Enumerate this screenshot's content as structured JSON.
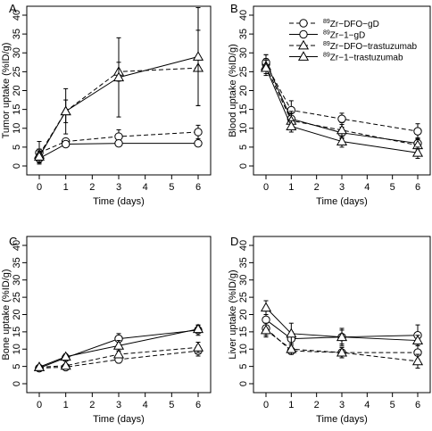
{
  "legend": {
    "entries": [
      {
        "prefix": "89",
        "label": "Zr−DFO−gD",
        "marker": "circle",
        "dash": "dashed"
      },
      {
        "prefix": "89",
        "label": "Zr−1−gD",
        "marker": "circle",
        "dash": "solid"
      },
      {
        "prefix": "89",
        "label": "Zr−DFO−trastuzumab",
        "marker": "triangle",
        "dash": "dashed"
      },
      {
        "prefix": "89",
        "label": "Zr−1−trastuzumab",
        "marker": "triangle",
        "dash": "solid"
      }
    ]
  },
  "chart_data": [
    {
      "panel": "A",
      "type": "line",
      "xlabel": "Time (days)",
      "ylabel": "Tumor uptake (%ID/g)",
      "x": [
        0,
        1,
        3,
        6
      ],
      "xticks": [
        0,
        1,
        2,
        3,
        4,
        5,
        6
      ],
      "xlim": [
        0,
        6
      ],
      "ylim": [
        0,
        40
      ],
      "yticks": [
        0,
        5,
        10,
        15,
        20,
        25,
        30,
        35,
        40
      ],
      "series": [
        {
          "name": "89Zr−DFO−gD",
          "marker": "circle",
          "dash": "dashed",
          "values": [
            3.5,
            6.5,
            7.8,
            9.0
          ],
          "err": [
            3.0,
            0.8,
            1.8,
            1.8
          ]
        },
        {
          "name": "89Zr−1−gD",
          "marker": "circle",
          "dash": "solid",
          "values": [
            2.0,
            5.8,
            6.0,
            6.0
          ],
          "err": [
            1.2,
            0.8,
            0.8,
            0.8
          ]
        },
        {
          "name": "89Zr−DFO−trastuzumab",
          "marker": "triangle",
          "dash": "dashed",
          "values": [
            3.0,
            14.5,
            25.0,
            26.0
          ],
          "err": [
            1.5,
            3.0,
            2.5,
            10.0
          ]
        },
        {
          "name": "89Zr−1−trastuzumab",
          "marker": "triangle",
          "dash": "solid",
          "values": [
            2.5,
            14.5,
            23.5,
            29.0
          ],
          "err": [
            1.5,
            6.0,
            10.5,
            13.0
          ]
        }
      ]
    },
    {
      "panel": "B",
      "type": "line",
      "xlabel": "Time (days)",
      "ylabel": "Blood uptake (%ID/g)",
      "x": [
        0,
        1,
        3,
        6
      ],
      "xticks": [
        0,
        1,
        2,
        3,
        4,
        5,
        6
      ],
      "xlim": [
        0,
        6
      ],
      "ylim": [
        0,
        40
      ],
      "yticks": [
        0,
        5,
        10,
        15,
        20,
        25,
        30,
        35,
        40
      ],
      "series": [
        {
          "name": "89Zr−DFO−gD",
          "marker": "circle",
          "dash": "dashed",
          "values": [
            27.0,
            14.8,
            12.5,
            9.2
          ],
          "err": [
            2.5,
            2.5,
            1.5,
            2.0
          ]
        },
        {
          "name": "89Zr−1−gD",
          "marker": "circle",
          "dash": "solid",
          "values": [
            27.5,
            12.5,
            8.8,
            6.0
          ],
          "err": [
            2.0,
            2.0,
            1.5,
            1.5
          ]
        },
        {
          "name": "89Zr−DFO−trastuzumab",
          "marker": "triangle",
          "dash": "dashed",
          "values": [
            26.5,
            12.0,
            9.5,
            5.5
          ],
          "err": [
            2.0,
            2.0,
            2.0,
            1.5
          ]
        },
        {
          "name": "89Zr−1−trastuzumab",
          "marker": "triangle",
          "dash": "solid",
          "values": [
            26.0,
            10.5,
            6.5,
            3.5
          ],
          "err": [
            2.0,
            1.5,
            1.5,
            1.5
          ]
        }
      ]
    },
    {
      "panel": "C",
      "type": "line",
      "xlabel": "Time (days)",
      "ylabel": "Bone uptake (%ID/g)",
      "x": [
        0,
        1,
        3,
        6
      ],
      "xticks": [
        0,
        1,
        2,
        3,
        4,
        5,
        6
      ],
      "xlim": [
        0,
        6
      ],
      "ylim": [
        0,
        40
      ],
      "yticks": [
        0,
        5,
        10,
        15,
        20,
        25,
        30,
        35,
        40
      ],
      "series": [
        {
          "name": "89Zr−DFO−gD",
          "marker": "circle",
          "dash": "dashed",
          "values": [
            4.5,
            4.8,
            7.0,
            9.5
          ],
          "err": [
            0.5,
            0.5,
            1.0,
            1.5
          ]
        },
        {
          "name": "89Zr−1−gD",
          "marker": "circle",
          "dash": "solid",
          "values": [
            4.5,
            7.5,
            13.0,
            15.5
          ],
          "err": [
            0.5,
            0.8,
            1.5,
            1.5
          ]
        },
        {
          "name": "89Zr−DFO−trastuzumab",
          "marker": "triangle",
          "dash": "dashed",
          "values": [
            4.8,
            5.2,
            8.5,
            10.5
          ],
          "err": [
            0.5,
            0.5,
            1.0,
            1.5
          ]
        },
        {
          "name": "89Zr−1−trastuzumab",
          "marker": "triangle",
          "dash": "solid",
          "values": [
            4.8,
            7.8,
            11.0,
            15.8
          ],
          "err": [
            0.5,
            0.8,
            1.5,
            1.0
          ]
        }
      ]
    },
    {
      "panel": "D",
      "type": "line",
      "xlabel": "Time (days)",
      "ylabel": "Liver uptake (%ID/g)",
      "x": [
        0,
        1,
        3,
        6
      ],
      "xticks": [
        0,
        1,
        2,
        3,
        4,
        5,
        6
      ],
      "xlim": [
        0,
        6
      ],
      "ylim": [
        0,
        40
      ],
      "yticks": [
        0,
        5,
        10,
        15,
        20,
        25,
        30,
        35,
        40
      ],
      "series": [
        {
          "name": "89Zr−DFO−gD",
          "marker": "circle",
          "dash": "dashed",
          "values": [
            16.0,
            9.5,
            9.0,
            9.0
          ],
          "err": [
            2.0,
            1.0,
            1.5,
            2.0
          ]
        },
        {
          "name": "89Zr−1−gD",
          "marker": "circle",
          "dash": "solid",
          "values": [
            18.5,
            13.0,
            13.5,
            14.0
          ],
          "err": [
            2.5,
            2.0,
            2.5,
            3.0
          ]
        },
        {
          "name": "89Zr−DFO−trastuzumab",
          "marker": "triangle",
          "dash": "dashed",
          "values": [
            15.5,
            10.0,
            9.0,
            6.5
          ],
          "err": [
            2.0,
            1.5,
            1.5,
            2.0
          ]
        },
        {
          "name": "89Zr−1−trastuzumab",
          "marker": "triangle",
          "dash": "solid",
          "values": [
            22.0,
            14.5,
            13.5,
            12.5
          ],
          "err": [
            2.0,
            3.0,
            2.0,
            1.5
          ]
        }
      ]
    }
  ]
}
